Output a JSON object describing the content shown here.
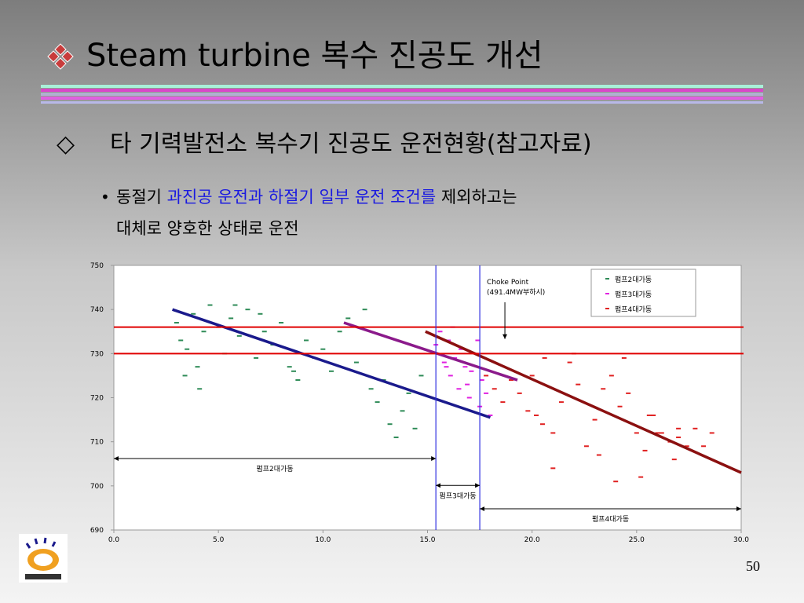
{
  "slide": {
    "title": "Steam turbine 복수 진공도 개선",
    "subtitle_symbol": "◇",
    "subtitle": "타 기력발전소 복수기 진공도 운전현황(참고자료)",
    "bullet": "•",
    "bullet_parts": [
      "동절기 ",
      "과진공 운전과 하절기 일부 운전 조건를",
      " 제외하고는"
    ],
    "bullet_line2": "대체로 양호한 상태로 운전",
    "page_number": "50"
  },
  "chart_data": {
    "type": "scatter",
    "xlim": [
      0,
      30
    ],
    "ylim": [
      690,
      750
    ],
    "xticks": [
      {
        "value": 0,
        "label": "0.0"
      },
      {
        "value": 5,
        "label": "5.0"
      },
      {
        "value": 10,
        "label": "10.0"
      },
      {
        "value": 15,
        "label": "15.0"
      },
      {
        "value": 20,
        "label": "20.0"
      },
      {
        "value": 25,
        "label": "25.0"
      },
      {
        "value": 30,
        "label": "30.0"
      }
    ],
    "yticks": [
      690,
      700,
      710,
      720,
      730,
      740,
      750
    ],
    "legend": "top-right",
    "series": [
      {
        "name": "펌프2대가동",
        "color": "#2e8b57",
        "x": [
          3.0,
          3.2,
          3.5,
          3.8,
          4.0,
          4.3,
          4.6,
          5.0,
          5.3,
          5.6,
          6.0,
          6.4,
          6.8,
          7.2,
          7.6,
          8.0,
          8.4,
          8.8,
          9.2,
          9.6,
          10.0,
          10.4,
          10.8,
          11.2,
          11.6,
          12.0,
          12.3,
          12.6,
          12.9,
          13.2,
          13.5,
          13.8,
          14.1,
          14.4,
          14.7,
          3.4,
          4.1,
          5.8,
          7.0,
          8.6
        ],
        "y": [
          737,
          733,
          731,
          739,
          727,
          735,
          741,
          736,
          730,
          738,
          734,
          740,
          729,
          735,
          732,
          737,
          727,
          724,
          733,
          729,
          731,
          726,
          735,
          738,
          728,
          740,
          722,
          719,
          724,
          714,
          711,
          717,
          721,
          713,
          725,
          725,
          722,
          741,
          739,
          726
        ]
      },
      {
        "name": "펌프3대가동",
        "color": "#e020e0",
        "x": [
          15.4,
          15.6,
          15.8,
          16.0,
          16.1,
          16.3,
          16.5,
          16.6,
          16.8,
          17.0,
          17.1,
          17.3,
          17.5,
          17.6,
          17.8,
          18.0,
          16.2,
          16.9,
          17.4,
          15.9
        ],
        "y": [
          732,
          735,
          728,
          733,
          725,
          729,
          722,
          731,
          727,
          720,
          726,
          730,
          718,
          724,
          721,
          716,
          736,
          723,
          733,
          727
        ]
      },
      {
        "name": "펌프4대가동",
        "color": "#e02020",
        "x": [
          17.8,
          18.2,
          18.6,
          19.0,
          19.4,
          19.8,
          20.2,
          20.6,
          20.5,
          21.0,
          21.4,
          21.8,
          22.2,
          22.6,
          23.0,
          23.4,
          23.8,
          24.2,
          24.6,
          25.0,
          25.4,
          25.8,
          26.2,
          26.6,
          27.0,
          27.4,
          27.8,
          28.2,
          28.6,
          22.0,
          23.2,
          24.4,
          25.6,
          26.8,
          21.0,
          27.0,
          24.0,
          25.2,
          26.0,
          20.0
        ],
        "y": [
          725,
          722,
          719,
          724,
          721,
          717,
          716,
          729,
          714,
          712,
          719,
          728,
          723,
          709,
          715,
          722,
          725,
          718,
          721,
          712,
          708,
          716,
          712,
          710,
          711,
          709,
          713,
          709,
          712,
          730,
          707,
          729,
          716,
          706,
          704,
          713,
          701,
          702,
          712,
          725
        ]
      }
    ],
    "trend_lines": [
      {
        "color": "#1a1a8c",
        "x": [
          2.8,
          18.0
        ],
        "y": [
          740,
          715.5
        ]
      },
      {
        "color": "#8b1a8b",
        "x": [
          11.0,
          19.3
        ],
        "y": [
          737,
          724
        ]
      },
      {
        "color": "#8b1010",
        "x": [
          14.9,
          30.0
        ],
        "y": [
          735,
          703
        ]
      }
    ],
    "hlines": [
      {
        "value": 736,
        "color": "#e00000"
      },
      {
        "value": 730,
        "color": "#e00000"
      }
    ],
    "vlines": [
      {
        "value": 15.4,
        "color": "#3030e0"
      },
      {
        "value": 17.5,
        "color": "#3030e0"
      }
    ],
    "ranges": [
      {
        "label": "펌프2대가동",
        "x": [
          0,
          15.4
        ],
        "y": 706.2
      },
      {
        "label": "펌프3대가동",
        "x": [
          15.4,
          17.5
        ],
        "y": 700.1
      },
      {
        "label": "펌프4대가동",
        "x": [
          17.5,
          30
        ],
        "y": 694.8
      }
    ],
    "annotation": {
      "lines": [
        "Choke Point",
        "(491.4MW부하시)"
      ],
      "x": 18.7,
      "y": 731
    }
  }
}
